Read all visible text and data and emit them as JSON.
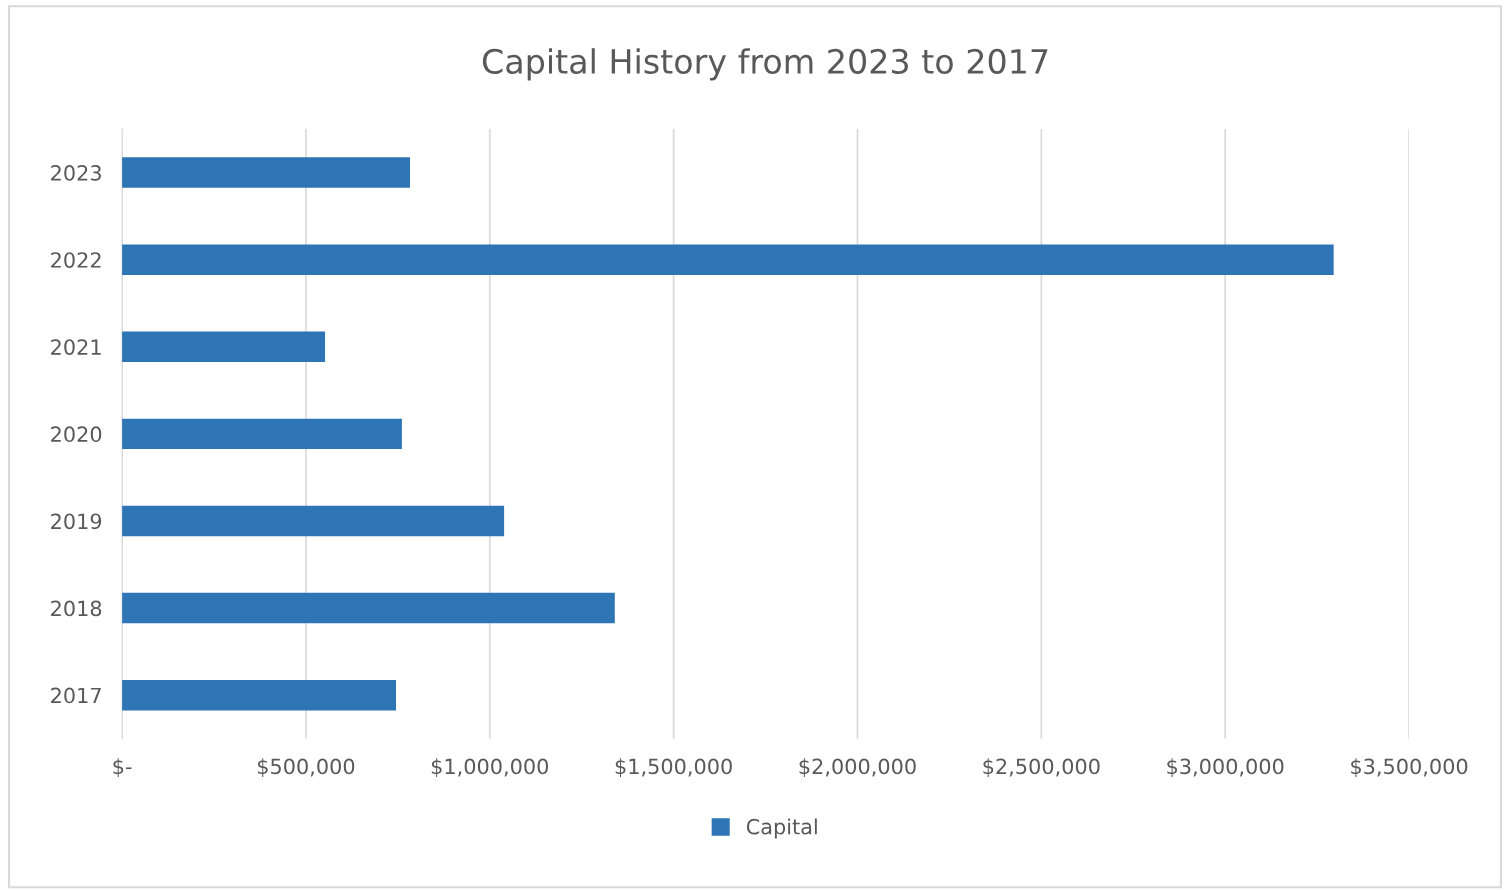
{
  "chart_data": {
    "type": "bar",
    "orientation": "horizontal",
    "title": "Capital History from 2023 to 2017",
    "categories": [
      "2023",
      "2022",
      "2021",
      "2020",
      "2019",
      "2018",
      "2017"
    ],
    "series": [
      {
        "name": "Capital",
        "color": "#2e75b6",
        "values": [
          783000,
          3295000,
          552000,
          761000,
          1039000,
          1340000,
          745000
        ]
      }
    ],
    "xlim": [
      0,
      3500000
    ],
    "xticks": [
      {
        "value": 0,
        "label": "$-"
      },
      {
        "value": 500000,
        "label": "$500,000"
      },
      {
        "value": 1000000,
        "label": "$1,000,000"
      },
      {
        "value": 1500000,
        "label": "$1,500,000"
      },
      {
        "value": 2000000,
        "label": "$2,000,000"
      },
      {
        "value": 2500000,
        "label": "$2,500,000"
      },
      {
        "value": 3000000,
        "label": "$3,000,000"
      },
      {
        "value": 3500000,
        "label": "$3,500,000"
      }
    ],
    "grid": "x",
    "legend": "bottom"
  }
}
